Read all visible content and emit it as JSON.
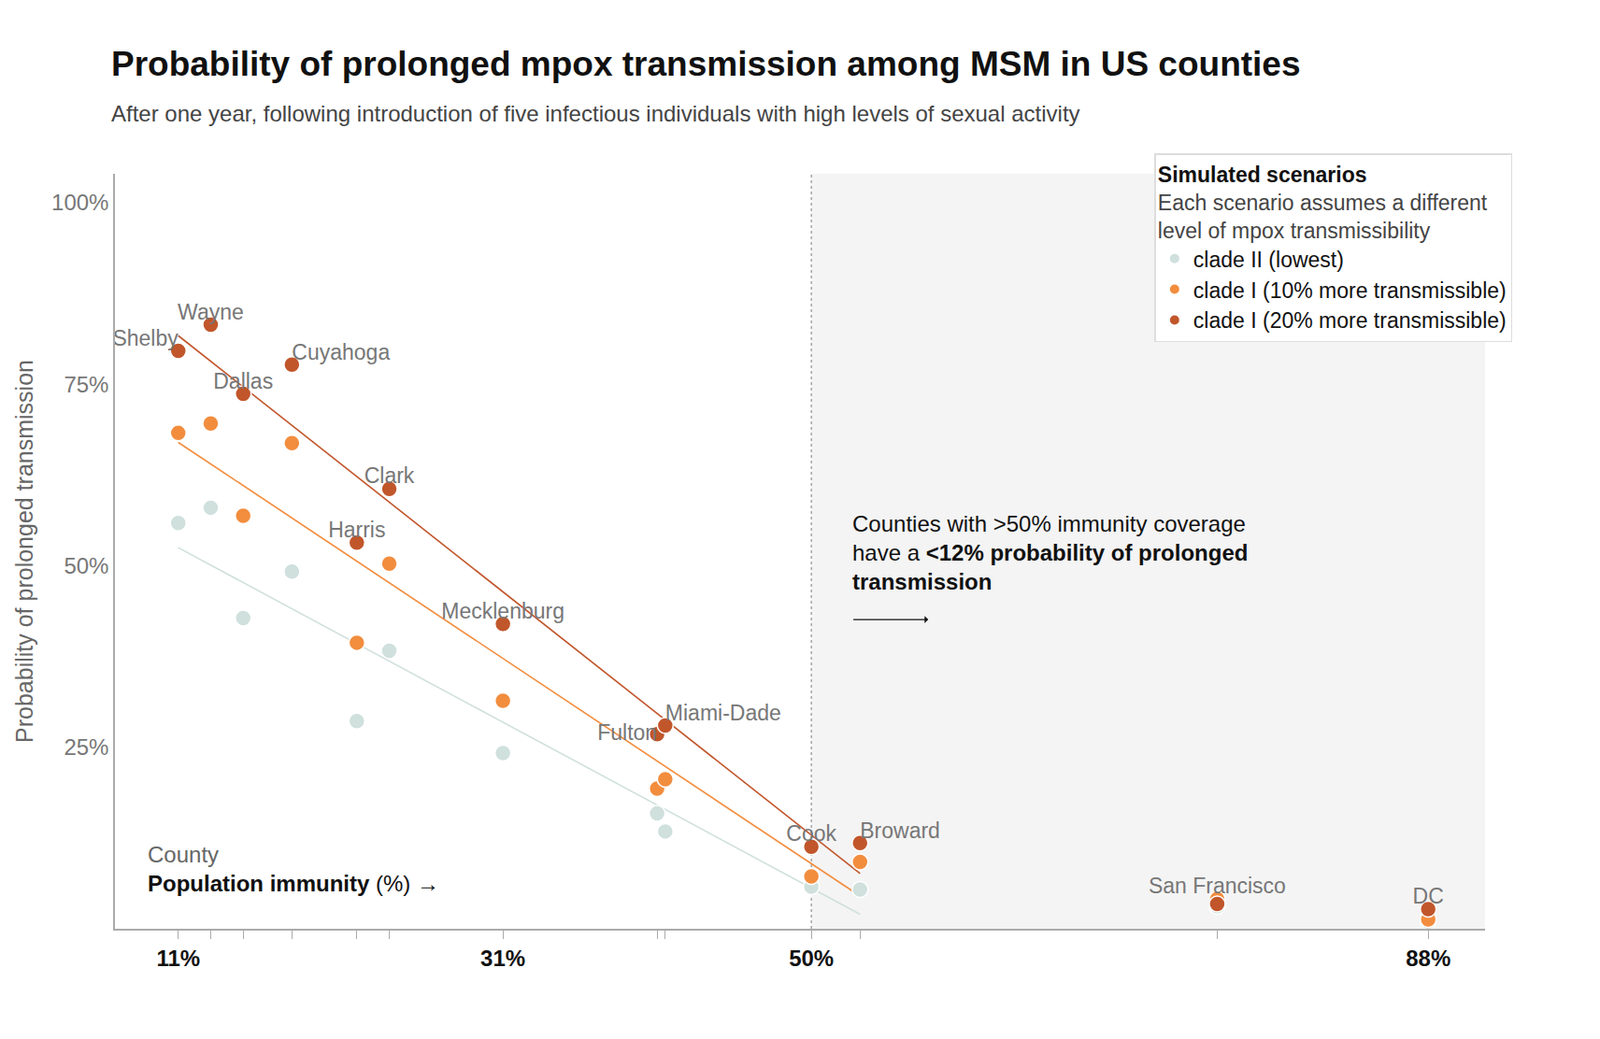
{
  "chart_data": {
    "type": "scatter",
    "title": "Probability of prolonged mpox transmission among MSM in US counties",
    "subtitle": "After one year, following introduction of five infectious individuals with high levels of sexual activity",
    "ylabel": "Probability of prolonged transmission",
    "xlabel": {
      "top": "County",
      "bold": "Population immunity",
      "rest": "(%) →"
    },
    "labels": [
      "Shelby",
      "Wayne",
      "Dallas",
      "Cuyahoga",
      "Harris",
      "Clark",
      "Mecklenburg",
      "Fulton",
      "Miami-Dade",
      "Cook",
      "Broward",
      "San Francisco",
      "DC"
    ],
    "x": [
      11,
      13,
      15,
      18,
      22,
      24,
      31,
      40.5,
      41,
      50,
      53,
      75,
      88
    ],
    "series": [
      {
        "name": "clade II (lowest)",
        "color": "#cfe0dd",
        "values": [
          55.9,
          58.0,
          42.8,
          49.2,
          28.6,
          38.3,
          24.2,
          15.9,
          13.4,
          5.8,
          5.4,
          3.1,
          1.0
        ],
        "trend": {
          "x": [
            11,
            53
          ],
          "values": [
            52.5,
            2.0
          ]
        }
      },
      {
        "name": "clade I (10% more transmissible)",
        "color": "#f28d3e",
        "values": [
          68.3,
          69.6,
          56.9,
          66.9,
          39.4,
          50.3,
          31.4,
          19.3,
          20.6,
          7.2,
          9.2,
          4.1,
          1.3
        ],
        "trend": {
          "x": [
            11,
            53
          ],
          "values": [
            67.0,
            4.5
          ]
        }
      },
      {
        "name": "clade I (20% more transmissible)",
        "color": "#c1562b",
        "values": [
          79.6,
          83.2,
          73.7,
          77.7,
          53.2,
          60.6,
          42.0,
          26.8,
          28.0,
          11.3,
          11.8,
          3.4,
          2.7
        ],
        "trend": {
          "x": [
            11,
            53
          ],
          "values": [
            81.7,
            7.6
          ]
        }
      }
    ],
    "xlim": [
      7.1,
      91.5
    ],
    "xticks": [
      {
        "value": 11,
        "label": "11%"
      },
      {
        "value": 31,
        "label": "31%"
      },
      {
        "value": 50,
        "label": "50%"
      },
      {
        "value": 88,
        "label": "88%"
      }
    ],
    "ylim": [
      0,
      104
    ],
    "yticks": [
      {
        "value": 25,
        "label": "25%"
      },
      {
        "value": 50,
        "label": "50%"
      },
      {
        "value": 75,
        "label": "75%"
      },
      {
        "value": 100,
        "label": "100%"
      }
    ],
    "threshold": 50,
    "annotation": {
      "text": [
        "Counties with >50% immunity coverage",
        "have a"
      ],
      "bold": [
        "<12% probability of prolonged",
        "transmission"
      ]
    },
    "legend_title": "Simulated scenarios",
    "legend_subtitle": [
      "Each scenario assumes a different",
      "level of mpox transmissibility"
    ],
    "legend": "top right",
    "marker": "circle",
    "grid": false
  }
}
